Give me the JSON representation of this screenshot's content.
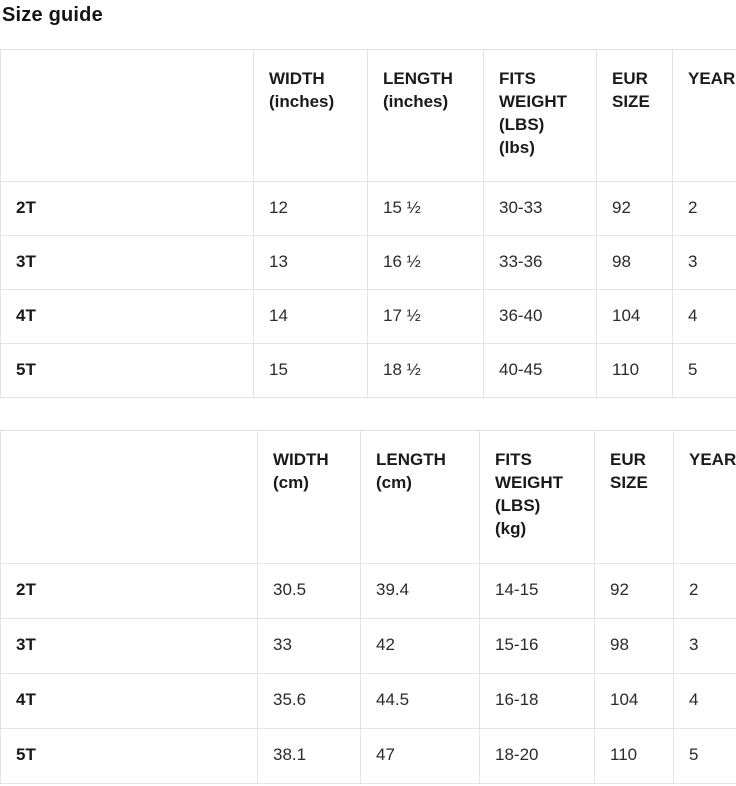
{
  "page": {
    "title": "Size guide"
  },
  "table_inches": {
    "headers": [
      "",
      "WIDTH\n(inches)",
      "LENGTH\n(inches)",
      "FITS\nWEIGHT\n(LBS)\n(lbs)",
      "EUR\nSIZE",
      "YEAR"
    ],
    "rows": [
      {
        "label": "2T",
        "values": [
          "12",
          "15 ½",
          "30-33",
          "92",
          "2"
        ]
      },
      {
        "label": "3T",
        "values": [
          "13",
          "16 ½",
          "33-36",
          "98",
          "3"
        ]
      },
      {
        "label": "4T",
        "values": [
          "14",
          "17 ½",
          "36-40",
          "104",
          "4"
        ]
      },
      {
        "label": "5T",
        "values": [
          "15",
          "18 ½",
          "40-45",
          "110",
          "5"
        ]
      }
    ]
  },
  "table_cm": {
    "headers": [
      "",
      "WIDTH\n(cm)",
      "LENGTH\n(cm)",
      "FITS\nWEIGHT\n(LBS)\n(kg)",
      "EUR\nSIZE",
      "YEAR"
    ],
    "rows": [
      {
        "label": "2T",
        "values": [
          "30.5",
          "39.4",
          "14-15",
          "92",
          "2"
        ]
      },
      {
        "label": "3T",
        "values": [
          "33",
          "42",
          "15-16",
          "98",
          "3"
        ]
      },
      {
        "label": "4T",
        "values": [
          "35.6",
          "44.5",
          "16-18",
          "104",
          "4"
        ]
      },
      {
        "label": "5T",
        "values": [
          "38.1",
          "47",
          "18-20",
          "110",
          "5"
        ]
      }
    ]
  },
  "colors": {
    "background": "#ffffff",
    "border": "#e3e3e3",
    "heading_text": "#1a1a1a",
    "body_text": "#2b2b2b"
  }
}
